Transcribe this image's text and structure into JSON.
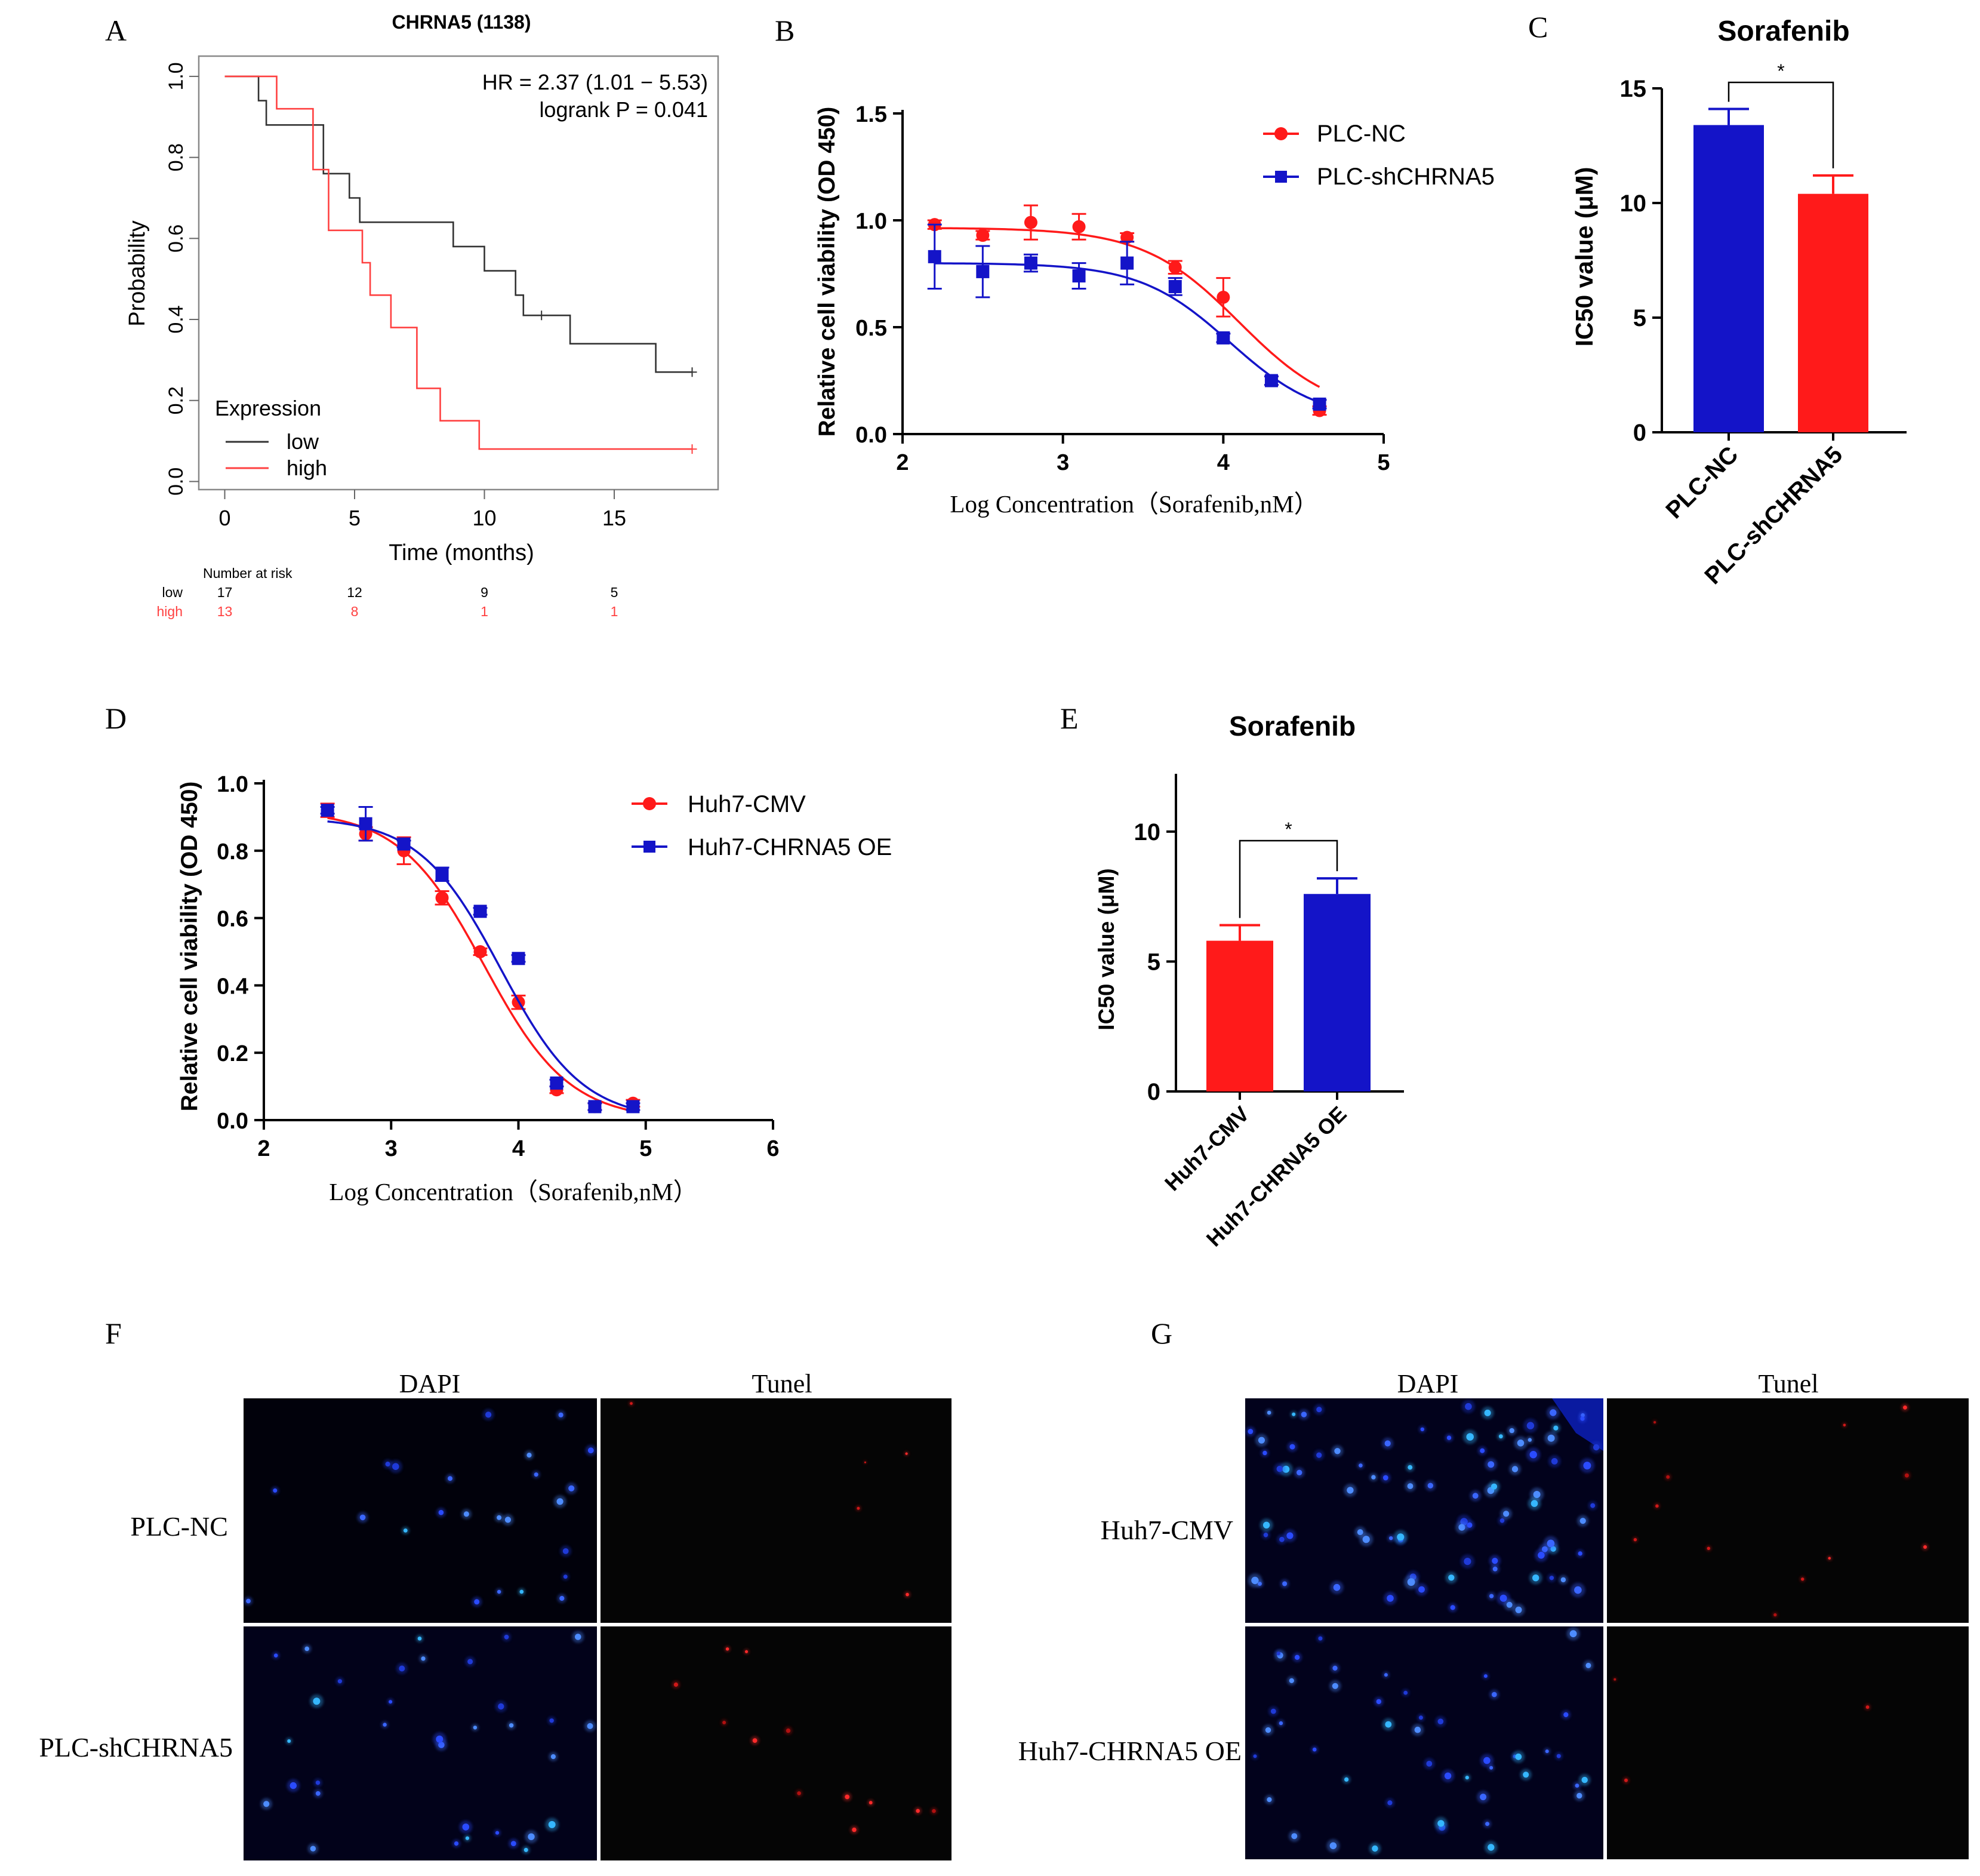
{
  "colors": {
    "red": "#ff1a1a",
    "blue": "#1414c8",
    "km_low": "#333333",
    "km_high": "#ff4040",
    "black": "#000000"
  },
  "panel_letters": [
    "A",
    "B",
    "C",
    "D",
    "E",
    "F",
    "G"
  ],
  "chart_data": [
    {
      "id": "A",
      "type": "line",
      "title": "CHRNA5 (1138)",
      "xlabel": "Time (months)",
      "ylabel": "Probability",
      "xlim": [
        -1,
        19
      ],
      "ylim": [
        -0.02,
        1.05
      ],
      "xticks": [
        0,
        5,
        10,
        15
      ],
      "xtick_labels": [
        "0",
        "5",
        "10",
        "15"
      ],
      "yticks": [
        0,
        0.2,
        0.4,
        0.6,
        0.8,
        1.0
      ],
      "ytick_labels": [
        "0.0",
        "0.2",
        "0.4",
        "0.6",
        "0.8",
        "1.0"
      ],
      "annotations": [
        "HR = 2.37 (1.01 − 5.53)",
        "logrank P = 0.041"
      ],
      "legend_title": "Expression",
      "series": [
        {
          "name": "low",
          "points": [
            [
              0,
              1.0
            ],
            [
              1.3,
              1.0
            ],
            [
              1.3,
              0.94
            ],
            [
              1.6,
              0.94
            ],
            [
              1.6,
              0.88
            ],
            [
              3.8,
              0.88
            ],
            [
              3.8,
              0.76
            ],
            [
              4.8,
              0.76
            ],
            [
              4.8,
              0.7
            ],
            [
              5.2,
              0.7
            ],
            [
              5.2,
              0.64
            ],
            [
              8.8,
              0.64
            ],
            [
              8.8,
              0.58
            ],
            [
              10.0,
              0.58
            ],
            [
              10.0,
              0.52
            ],
            [
              11.2,
              0.52
            ],
            [
              11.2,
              0.46
            ],
            [
              11.5,
              0.46
            ],
            [
              11.5,
              0.41
            ],
            [
              13.3,
              0.41
            ],
            [
              13.3,
              0.34
            ],
            [
              16.6,
              0.34
            ],
            [
              16.6,
              0.27
            ],
            [
              18.0,
              0.27
            ]
          ],
          "censor": [
            [
              12.2,
              0.41
            ],
            [
              18.0,
              0.27
            ]
          ]
        },
        {
          "name": "high",
          "points": [
            [
              0,
              1.0
            ],
            [
              2.0,
              1.0
            ],
            [
              2.0,
              0.92
            ],
            [
              3.4,
              0.92
            ],
            [
              3.4,
              0.77
            ],
            [
              4.0,
              0.77
            ],
            [
              4.0,
              0.62
            ],
            [
              5.3,
              0.62
            ],
            [
              5.3,
              0.54
            ],
            [
              5.6,
              0.54
            ],
            [
              5.6,
              0.46
            ],
            [
              6.4,
              0.46
            ],
            [
              6.4,
              0.38
            ],
            [
              7.4,
              0.38
            ],
            [
              7.4,
              0.23
            ],
            [
              8.3,
              0.23
            ],
            [
              8.3,
              0.15
            ],
            [
              9.8,
              0.15
            ],
            [
              9.8,
              0.08
            ],
            [
              18.0,
              0.08
            ]
          ],
          "censor": [
            [
              18.0,
              0.08
            ]
          ]
        }
      ],
      "risk_table": {
        "header": "Number at risk",
        "rows": [
          {
            "name": "low",
            "values": [
              "17",
              "12",
              "9",
              "5"
            ]
          },
          {
            "name": "high",
            "values": [
              "13",
              "8",
              "1",
              "1"
            ]
          }
        ]
      }
    },
    {
      "id": "B",
      "type": "line",
      "xlabel": "Log Concentration（Sorafenib,nM）",
      "ylabel": "Relative cell viability (OD 450)",
      "xlim": [
        2,
        5
      ],
      "ylim": [
        0,
        1.5
      ],
      "xticks": [
        2,
        3,
        4,
        5
      ],
      "xtick_labels": [
        "2",
        "3",
        "4",
        "5"
      ],
      "yticks": [
        0,
        0.5,
        1.0,
        1.5
      ],
      "ytick_labels": [
        "0.0",
        "0.5",
        "1.0",
        "1.5"
      ],
      "series": [
        {
          "name": "PLC-NC",
          "marker": "circle",
          "color": "red",
          "x": [
            2.2,
            2.5,
            2.8,
            3.1,
            3.4,
            3.7,
            4.0,
            4.3,
            4.6
          ],
          "y": [
            0.98,
            0.93,
            0.99,
            0.97,
            0.92,
            0.78,
            0.64,
            0.25,
            0.11
          ],
          "err": [
            0.02,
            0.02,
            0.08,
            0.06,
            0.02,
            0.03,
            0.09,
            0.02,
            0.02
          ],
          "fit": {
            "top": 0.965,
            "bottom": 0.08,
            "ec50": 4.1,
            "hill": -1.45
          }
        },
        {
          "name": "PLC-shCHRNA5",
          "marker": "square",
          "color": "blue",
          "x": [
            2.2,
            2.5,
            2.8,
            3.1,
            3.4,
            3.7,
            4.0,
            4.3,
            4.6
          ],
          "y": [
            0.83,
            0.76,
            0.8,
            0.74,
            0.8,
            0.69,
            0.45,
            0.25,
            0.14
          ],
          "err": [
            0.15,
            0.12,
            0.04,
            0.06,
            0.1,
            0.04,
            0.02,
            0.02,
            0.02
          ],
          "fit": {
            "top": 0.8,
            "bottom": 0.06,
            "ec50": 4.04,
            "hill": -1.55
          }
        }
      ]
    },
    {
      "id": "C",
      "type": "bar",
      "title": "Sorafenib",
      "ylabel": "IC50 value (μM)",
      "ylim": [
        0,
        15
      ],
      "yticks": [
        0,
        5,
        10,
        15
      ],
      "ytick_labels": [
        "0",
        "5",
        "10",
        "15"
      ],
      "categories": [
        "PLC-NC",
        "PLC-shCHRNA5"
      ],
      "values": [
        13.4,
        10.4
      ],
      "err": [
        0.7,
        0.8
      ],
      "bar_colors": [
        "blue",
        "red"
      ],
      "significance": "*"
    },
    {
      "id": "D",
      "type": "line",
      "xlabel": "Log Concentration（Sorafenib,nM）",
      "ylabel": "Relative cell viability (OD 450)",
      "xlim": [
        2,
        6
      ],
      "ylim": [
        0,
        1.0
      ],
      "xticks": [
        2,
        3,
        4,
        5,
        6
      ],
      "xtick_labels": [
        "2",
        "3",
        "4",
        "5",
        "6"
      ],
      "yticks": [
        0,
        0.2,
        0.4,
        0.6,
        0.8,
        1.0
      ],
      "ytick_labels": [
        "0.0",
        "0.2",
        "0.4",
        "0.6",
        "0.8",
        "1.0"
      ],
      "series": [
        {
          "name": "Huh7-CMV",
          "marker": "circle",
          "color": "red",
          "x": [
            2.5,
            2.8,
            3.1,
            3.4,
            3.7,
            4.0,
            4.3,
            4.6,
            4.9
          ],
          "y": [
            0.92,
            0.85,
            0.8,
            0.66,
            0.5,
            0.35,
            0.09,
            0.04,
            0.05
          ],
          "err": [
            0.02,
            0.02,
            0.04,
            0.02,
            0.01,
            0.02,
            0.01,
            0.01,
            0.01
          ],
          "fit": {
            "top": 0.92,
            "bottom": 0.0,
            "ec50": 3.73,
            "hill": -1.3
          }
        },
        {
          "name": "Huh7-CHRNA5 OE",
          "marker": "square",
          "color": "blue",
          "x": [
            2.5,
            2.8,
            3.1,
            3.4,
            3.7,
            4.0,
            4.3,
            4.6,
            4.9
          ],
          "y": [
            0.92,
            0.88,
            0.82,
            0.73,
            0.62,
            0.48,
            0.11,
            0.04,
            0.04
          ],
          "err": [
            0.01,
            0.05,
            0.01,
            0.02,
            0.01,
            0.01,
            0.01,
            0.01,
            0.01
          ],
          "fit": {
            "top": 0.9,
            "bottom": 0.0,
            "ec50": 3.86,
            "hill": -1.35
          }
        }
      ]
    },
    {
      "id": "E",
      "type": "bar",
      "title": "Sorafenib",
      "ylabel": "IC50 value (μM)",
      "ylim": [
        0,
        12.5
      ],
      "yticks": [
        0,
        5,
        10
      ],
      "ytick_labels": [
        "0",
        "5",
        "10"
      ],
      "categories": [
        "Huh7-CMV",
        "Huh7-CHRNA5 OE"
      ],
      "values": [
        5.8,
        7.6
      ],
      "err": [
        0.6,
        0.6
      ],
      "bar_colors": [
        "red",
        "blue"
      ],
      "significance": "*"
    }
  ],
  "microscopy": {
    "F": {
      "column_labels": [
        "DAPI",
        "Tunel"
      ],
      "row_labels": [
        "PLC-NC",
        "PLC-shCHRNA5"
      ]
    },
    "G": {
      "column_labels": [
        "DAPI",
        "Tunel"
      ],
      "row_labels": [
        "Huh7-CMV",
        "Huh7-CHRNA5 OE"
      ]
    }
  }
}
